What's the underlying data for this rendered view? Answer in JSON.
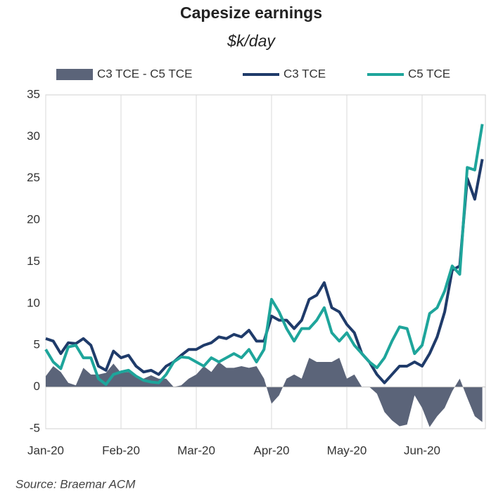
{
  "chart_data": {
    "type": "line",
    "title": "Capesize earnings",
    "subtitle": "$k/day",
    "source": "Source: Braemar ACM",
    "categories": [
      "Jan-20",
      null,
      null,
      null,
      null,
      null,
      null,
      null,
      null,
      null,
      "Feb-20",
      null,
      null,
      null,
      null,
      null,
      null,
      null,
      null,
      null,
      "Mar-20",
      null,
      null,
      null,
      null,
      null,
      null,
      null,
      null,
      null,
      "Apr-20",
      null,
      null,
      null,
      null,
      null,
      null,
      null,
      null,
      null,
      "May-20",
      null,
      null,
      null,
      null,
      null,
      null,
      null,
      null,
      null,
      "Jun-20",
      null,
      null,
      null,
      null,
      null,
      null,
      null,
      null
    ],
    "series": [
      {
        "name": "C3 TCE - C5 TCE",
        "kind": "area",
        "color": "#5b6479",
        "values": [
          1.3,
          2.5,
          1.8,
          0.5,
          0.2,
          2.3,
          1.5,
          1.5,
          1.7,
          2.8,
          1.7,
          1.8,
          1.2,
          1.0,
          1.4,
          1.0,
          1.0,
          0,
          0.2,
          1.0,
          1.5,
          2.5,
          1.8,
          3.0,
          2.3,
          2.3,
          2.5,
          2.3,
          2.5,
          1.0,
          -2.0,
          -1.0,
          1.0,
          1.5,
          1.0,
          3.5,
          3.0,
          3.0,
          3.0,
          3.5,
          1.0,
          1.5,
          0,
          0,
          -0.8,
          -3.0,
          -4.0,
          -4.7,
          -4.5,
          -1.0,
          -2.5,
          -4.8,
          -3.5,
          -2.5,
          -0.5,
          1.0,
          -1.3,
          -3.5,
          -4.2
        ]
      },
      {
        "name": "C3 TCE",
        "kind": "line",
        "color": "#1f3b6a",
        "values": [
          5.8,
          5.5,
          4.0,
          5.3,
          5.2,
          5.8,
          5.0,
          2.5,
          2.0,
          4.3,
          3.5,
          3.8,
          2.5,
          1.8,
          2.0,
          1.5,
          2.5,
          3.0,
          3.8,
          4.5,
          4.5,
          5.0,
          5.3,
          6.0,
          5.8,
          6.3,
          6.0,
          6.8,
          5.5,
          5.5,
          8.5,
          8.0,
          8.0,
          7.0,
          8.0,
          10.5,
          11.0,
          12.5,
          9.5,
          9.0,
          7.5,
          6.5,
          4.0,
          3.0,
          1.5,
          0.5,
          1.5,
          2.5,
          2.5,
          3.0,
          2.5,
          4.0,
          6.0,
          9.0,
          14.0,
          14.5,
          25.0,
          22.5,
          27.3
        ]
      },
      {
        "name": "C5 TCE",
        "kind": "line",
        "color": "#1ea59b",
        "values": [
          4.5,
          3.0,
          2.2,
          4.8,
          5.0,
          3.5,
          3.5,
          1.0,
          0.3,
          1.5,
          1.8,
          2.0,
          1.3,
          0.8,
          0.6,
          0.5,
          1.5,
          3.0,
          3.6,
          3.5,
          3.0,
          2.5,
          3.5,
          3.0,
          3.5,
          4.0,
          3.5,
          4.5,
          3.0,
          4.5,
          10.5,
          9.0,
          7.0,
          5.5,
          7.0,
          7.0,
          8.0,
          9.5,
          6.5,
          5.5,
          6.5,
          5.0,
          4.0,
          3.0,
          2.3,
          3.5,
          5.5,
          7.2,
          7.0,
          4.0,
          5.0,
          8.8,
          9.5,
          11.5,
          14.5,
          13.5,
          26.3,
          26.0,
          31.5
        ]
      }
    ],
    "ylim": [
      -5,
      35
    ],
    "yticks": [
      -5,
      0,
      5,
      10,
      15,
      20,
      25,
      30,
      35
    ],
    "grid": true,
    "legend": "top"
  }
}
